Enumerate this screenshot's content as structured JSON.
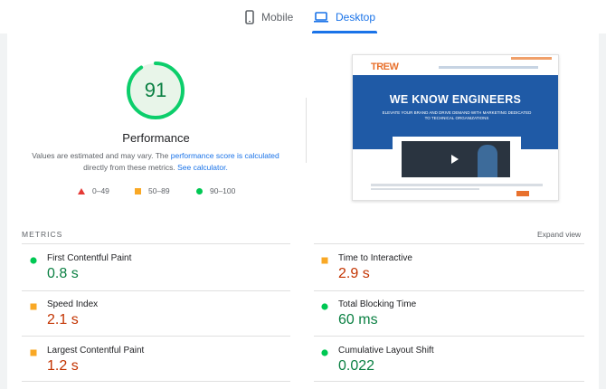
{
  "tabs": [
    {
      "label": "Mobile",
      "icon": "phone-icon",
      "selected": false
    },
    {
      "label": "Desktop",
      "icon": "laptop-icon",
      "selected": true
    }
  ],
  "performance": {
    "score": "91",
    "score_fraction": 0.91,
    "title": "Performance",
    "note_prefix": "Values are estimated and may vary. The ",
    "note_link1": "performance score is calculated",
    "note_middle": "directly from these metrics. ",
    "note_link2": "See calculator.",
    "legend": [
      {
        "range": "0–49",
        "shape": "triangle",
        "color": "#e53935"
      },
      {
        "range": "50–89",
        "shape": "square",
        "color": "#f9a825"
      },
      {
        "range": "90–100",
        "shape": "circle",
        "color": "#00c853"
      }
    ]
  },
  "screenshot": {
    "brand": "TREW",
    "headline": "WE KNOW ENGINEERS",
    "subline": "ELEVATE YOUR BRAND AND DRIVE DEMAND WITH MARKETING DEDICATED TO TECHNICAL ORGANIZATIONS"
  },
  "metrics": {
    "header": "METRICS",
    "expand_label": "Expand view",
    "items": [
      {
        "name": "First Contentful Paint",
        "value": "0.8 s",
        "rating": "good"
      },
      {
        "name": "Time to Interactive",
        "value": "2.9 s",
        "rating": "average"
      },
      {
        "name": "Speed Index",
        "value": "2.1 s",
        "rating": "average"
      },
      {
        "name": "Total Blocking Time",
        "value": "60 ms",
        "rating": "good"
      },
      {
        "name": "Largest Contentful Paint",
        "value": "1.2 s",
        "rating": "average"
      },
      {
        "name": "Cumulative Layout Shift",
        "value": "0.022",
        "rating": "good"
      }
    ]
  },
  "colors": {
    "accent": "#1a73e8",
    "good": "#0b8043",
    "average": "#c33300",
    "average_marker": "#f9a825",
    "good_marker": "#00c853",
    "fail_marker": "#e53935"
  }
}
